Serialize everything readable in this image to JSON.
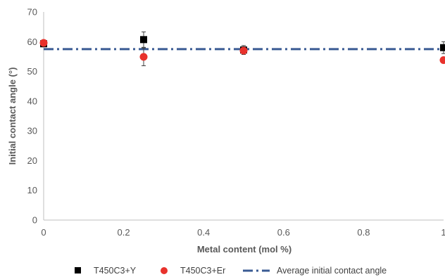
{
  "chart_data": {
    "type": "scatter",
    "xlabel": "Metal content (mol %)",
    "ylabel": "Initial contact angle (°)",
    "xlim": [
      0,
      1
    ],
    "ylim": [
      0,
      70
    ],
    "x_ticks": [
      "0",
      "0.2",
      "0.4",
      "0.6",
      "0.8",
      "1"
    ],
    "y_ticks": [
      "0",
      "10",
      "20",
      "30",
      "40",
      "50",
      "60",
      "70"
    ],
    "grid": false,
    "legend_position": "bottom",
    "series": [
      {
        "name": "T450C3+Y",
        "marker": "square",
        "color": "#000000",
        "points": [
          {
            "x": 0,
            "y": 59.3,
            "err": 0.8
          },
          {
            "x": 0.25,
            "y": 60.7,
            "err": 2.6
          },
          {
            "x": 0.5,
            "y": 57.2,
            "err": 1.5
          },
          {
            "x": 1,
            "y": 58.0,
            "err": 2.0
          }
        ]
      },
      {
        "name": "T450C3+Er",
        "marker": "circle",
        "color": "#e8322c",
        "points": [
          {
            "x": 0,
            "y": 59.6,
            "err": 0.8
          },
          {
            "x": 0.25,
            "y": 54.9,
            "err": 3.0
          },
          {
            "x": 0.5,
            "y": 57.0,
            "err": 1.3
          },
          {
            "x": 1,
            "y": 53.8,
            "err": 0.8
          }
        ]
      },
      {
        "name": "Average initial contact angle",
        "type": "line",
        "style": "dash-dot",
        "color": "#3a5b93",
        "y": 57.5
      }
    ]
  }
}
